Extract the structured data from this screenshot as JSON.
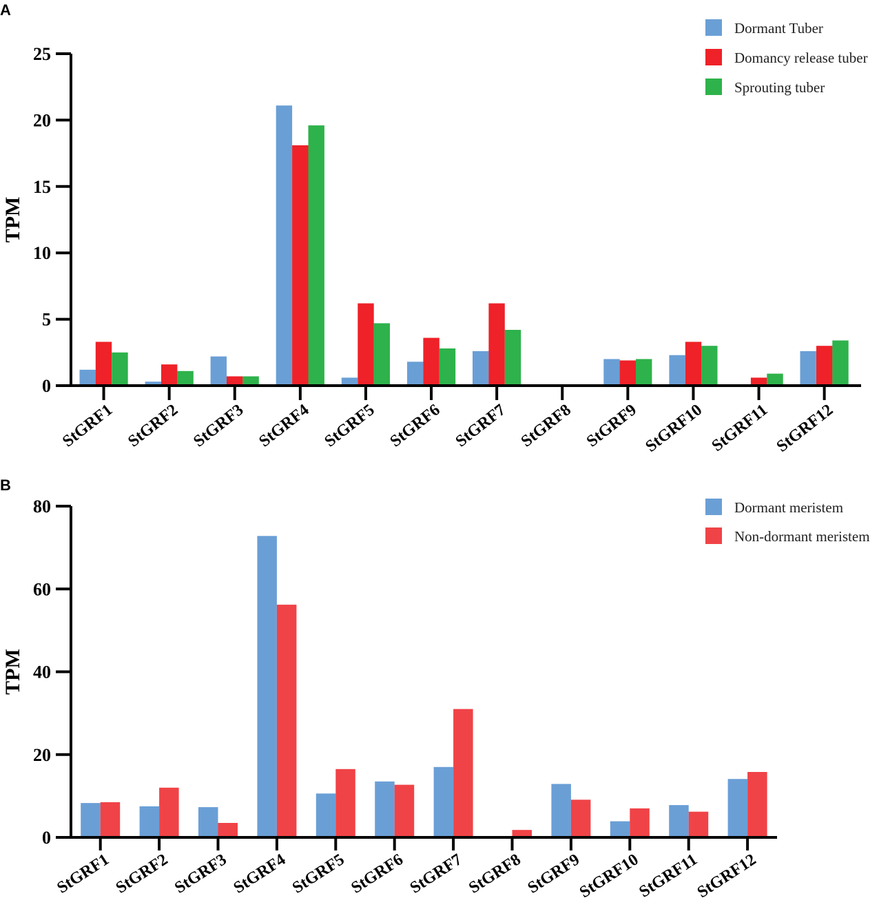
{
  "chart_data": [
    {
      "panel": "A",
      "type": "bar",
      "title": "",
      "xlabel": "",
      "ylabel": "TPM",
      "ylim": [
        0,
        25
      ],
      "yticks": [
        0,
        5,
        10,
        15,
        20,
        25
      ],
      "ytick_labels": [
        "0",
        "5",
        "10",
        "15",
        "20",
        "25"
      ],
      "grid": false,
      "legend_position": "top-right",
      "categories": [
        "StGRF1",
        "StGRF2",
        "StGRF3",
        "StGRF4",
        "StGRF5",
        "StGRF6",
        "StGRF7",
        "StGRF8",
        "StGRF9",
        "StGRF10",
        "StGRF11",
        "StGRF12"
      ],
      "series": [
        {
          "name": "Dormant Tuber",
          "color": "#6a9fd6",
          "values": [
            1.2,
            0.3,
            2.2,
            21.1,
            0.6,
            1.8,
            2.6,
            0,
            2.0,
            2.3,
            0,
            2.6
          ]
        },
        {
          "name": "Domancy release tuber",
          "color": "#ee2228",
          "values": [
            3.3,
            1.6,
            0.7,
            18.1,
            6.2,
            3.6,
            6.2,
            0,
            1.9,
            3.3,
            0.6,
            3.0
          ]
        },
        {
          "name": "Sprouting tuber",
          "color": "#2eb24b",
          "values": [
            2.5,
            1.1,
            0.7,
            19.6,
            4.7,
            2.8,
            4.2,
            0,
            2.0,
            3.0,
            0.9,
            3.4
          ]
        }
      ]
    },
    {
      "panel": "B",
      "type": "bar",
      "title": "",
      "xlabel": "",
      "ylabel": "TPM",
      "ylim": [
        0,
        80
      ],
      "yticks": [
        0,
        20,
        40,
        60,
        80
      ],
      "ytick_labels": [
        "0",
        "20",
        "40",
        "60",
        "80"
      ],
      "grid": false,
      "legend_position": "top-right",
      "categories": [
        "StGRF1",
        "StGRF2",
        "StGRF3",
        "StGRF4",
        "StGRF5",
        "StGRF6",
        "StGRF7",
        "StGRF8",
        "StGRF9",
        "StGRF10",
        "StGRF11",
        "StGRF12"
      ],
      "series": [
        {
          "name": "Dormant meristem",
          "color": "#6a9fd6",
          "values": [
            8.3,
            7.5,
            7.3,
            72.8,
            10.6,
            13.5,
            17.0,
            0,
            12.9,
            3.9,
            7.8,
            14.1
          ]
        },
        {
          "name": "Non-dormant meristem",
          "color": "#f04347",
          "values": [
            8.5,
            12.0,
            3.5,
            56.2,
            16.5,
            12.7,
            31.0,
            1.8,
            9.1,
            7.0,
            6.2,
            15.8
          ]
        }
      ]
    }
  ]
}
